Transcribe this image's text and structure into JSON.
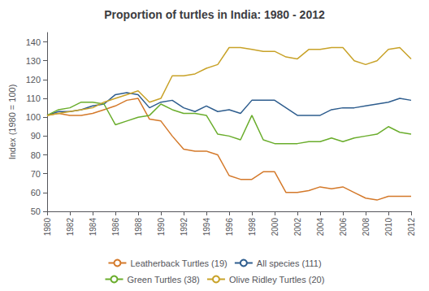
{
  "chart_data": {
    "type": "line",
    "title": "Proportion of turtles in India: 1980 - 2012",
    "ylabel": "Index (1980 = 100)",
    "x": [
      1980,
      1981,
      1982,
      1983,
      1984,
      1985,
      1986,
      1987,
      1988,
      1989,
      1990,
      1991,
      1992,
      1993,
      1994,
      1995,
      1996,
      1997,
      1998,
      1999,
      2000,
      2001,
      2002,
      2003,
      2004,
      2005,
      2006,
      2007,
      2008,
      2009,
      2010,
      2011,
      2012
    ],
    "series": [
      {
        "name": "Leatherback Turtles (19)",
        "color": "#D4792A",
        "values": [
          101,
          102,
          101,
          101,
          102,
          104,
          106,
          109,
          110,
          99,
          98,
          90,
          83,
          82,
          82,
          80,
          69,
          67,
          67,
          71,
          71,
          60,
          60,
          61,
          63,
          62,
          63,
          60,
          57,
          56,
          58,
          58,
          58
        ]
      },
      {
        "name": "All species (111)",
        "color": "#2E5D8E",
        "values": [
          101,
          103,
          103,
          104,
          106,
          107,
          112,
          113,
          112,
          105,
          108,
          109,
          105,
          103,
          106,
          103,
          104,
          102,
          109,
          109,
          109,
          105,
          101,
          101,
          101,
          104,
          105,
          105,
          106,
          107,
          108,
          110,
          109
        ]
      },
      {
        "name": "Green Turtles (38)",
        "color": "#6AAD2C",
        "values": [
          101,
          104,
          105,
          108,
          108,
          107,
          96,
          98,
          100,
          101,
          107,
          104,
          102,
          102,
          101,
          91,
          90,
          88,
          101,
          88,
          86,
          86,
          86,
          87,
          87,
          89,
          87,
          89,
          90,
          91,
          95,
          92,
          91
        ]
      },
      {
        "name": "Olive Ridley Turtles (20)",
        "color": "#C8A228",
        "values": [
          101,
          102,
          103,
          104,
          105,
          108,
          110,
          112,
          114,
          108,
          110,
          122,
          122,
          123,
          126,
          128,
          137,
          137,
          136,
          135,
          135,
          132,
          131,
          136,
          136,
          137,
          137,
          130,
          128,
          130,
          136,
          137,
          131
        ]
      }
    ],
    "xlim": [
      1980,
      2012
    ],
    "xticks": [
      1980,
      1982,
      1984,
      1986,
      1988,
      1990,
      1992,
      1994,
      1996,
      1998,
      2000,
      2002,
      2004,
      2006,
      2008,
      2010,
      2012
    ],
    "ylim": [
      50,
      145
    ],
    "yticks": [
      50,
      60,
      70,
      80,
      90,
      100,
      110,
      120,
      130,
      140
    ],
    "grid": false,
    "legend": "bottom"
  }
}
